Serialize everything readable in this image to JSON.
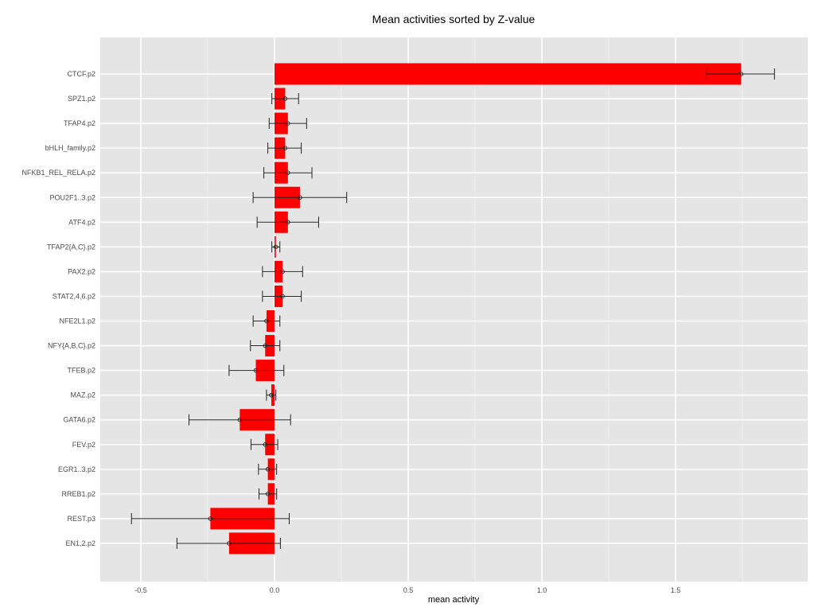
{
  "chart_data": {
    "type": "bar",
    "orientation": "horizontal",
    "title": "Mean activities sorted by Z-value",
    "xlabel": "mean activity",
    "ylabel": "",
    "xlim": [
      -0.65,
      2.0
    ],
    "xticks": [
      -0.5,
      0.0,
      0.5,
      1.0,
      1.5
    ],
    "xtick_labels": [
      "-0.5",
      "0.0",
      "0.5",
      "1.0",
      "1.5"
    ],
    "bar_color": "#ff0000",
    "panel_color": "#e5e5e5",
    "grid": true,
    "categories": [
      "CTCF.p2",
      "SPZ1.p2",
      "TFAP4.p2",
      "bHLH_family.p2",
      "NFKB1_REL_RELA.p2",
      "POU2F1..3.p2",
      "ATF4.p2",
      "TFAP2{A,C}.p2",
      "PAX2.p2",
      "STAT2,4,6.p2",
      "NFE2L1.p2",
      "NFY{A,B,C}.p2",
      "TFEB.p2",
      "MAZ.p2",
      "GATA6.p2",
      "FEV.p2",
      "EGR1..3.p2",
      "RREB1.p2",
      "REST.p3",
      "EN1,2.p2"
    ],
    "values": [
      1.745,
      0.04,
      0.05,
      0.04,
      0.05,
      0.095,
      0.05,
      0.005,
      0.03,
      0.03,
      -0.03,
      -0.035,
      -0.07,
      -0.012,
      -0.13,
      -0.035,
      -0.025,
      -0.025,
      -0.24,
      -0.17
    ],
    "error_low": [
      1.615,
      -0.01,
      -0.02,
      -0.025,
      -0.04,
      -0.08,
      -0.065,
      -0.01,
      -0.045,
      -0.045,
      -0.08,
      -0.09,
      -0.17,
      -0.03,
      -0.32,
      -0.088,
      -0.06,
      -0.058,
      -0.535,
      -0.365
    ],
    "error_high": [
      1.87,
      0.09,
      0.12,
      0.1,
      0.14,
      0.27,
      0.165,
      0.02,
      0.105,
      0.1,
      0.02,
      0.02,
      0.035,
      0.005,
      0.06,
      0.012,
      0.008,
      0.008,
      0.055,
      0.022
    ]
  }
}
